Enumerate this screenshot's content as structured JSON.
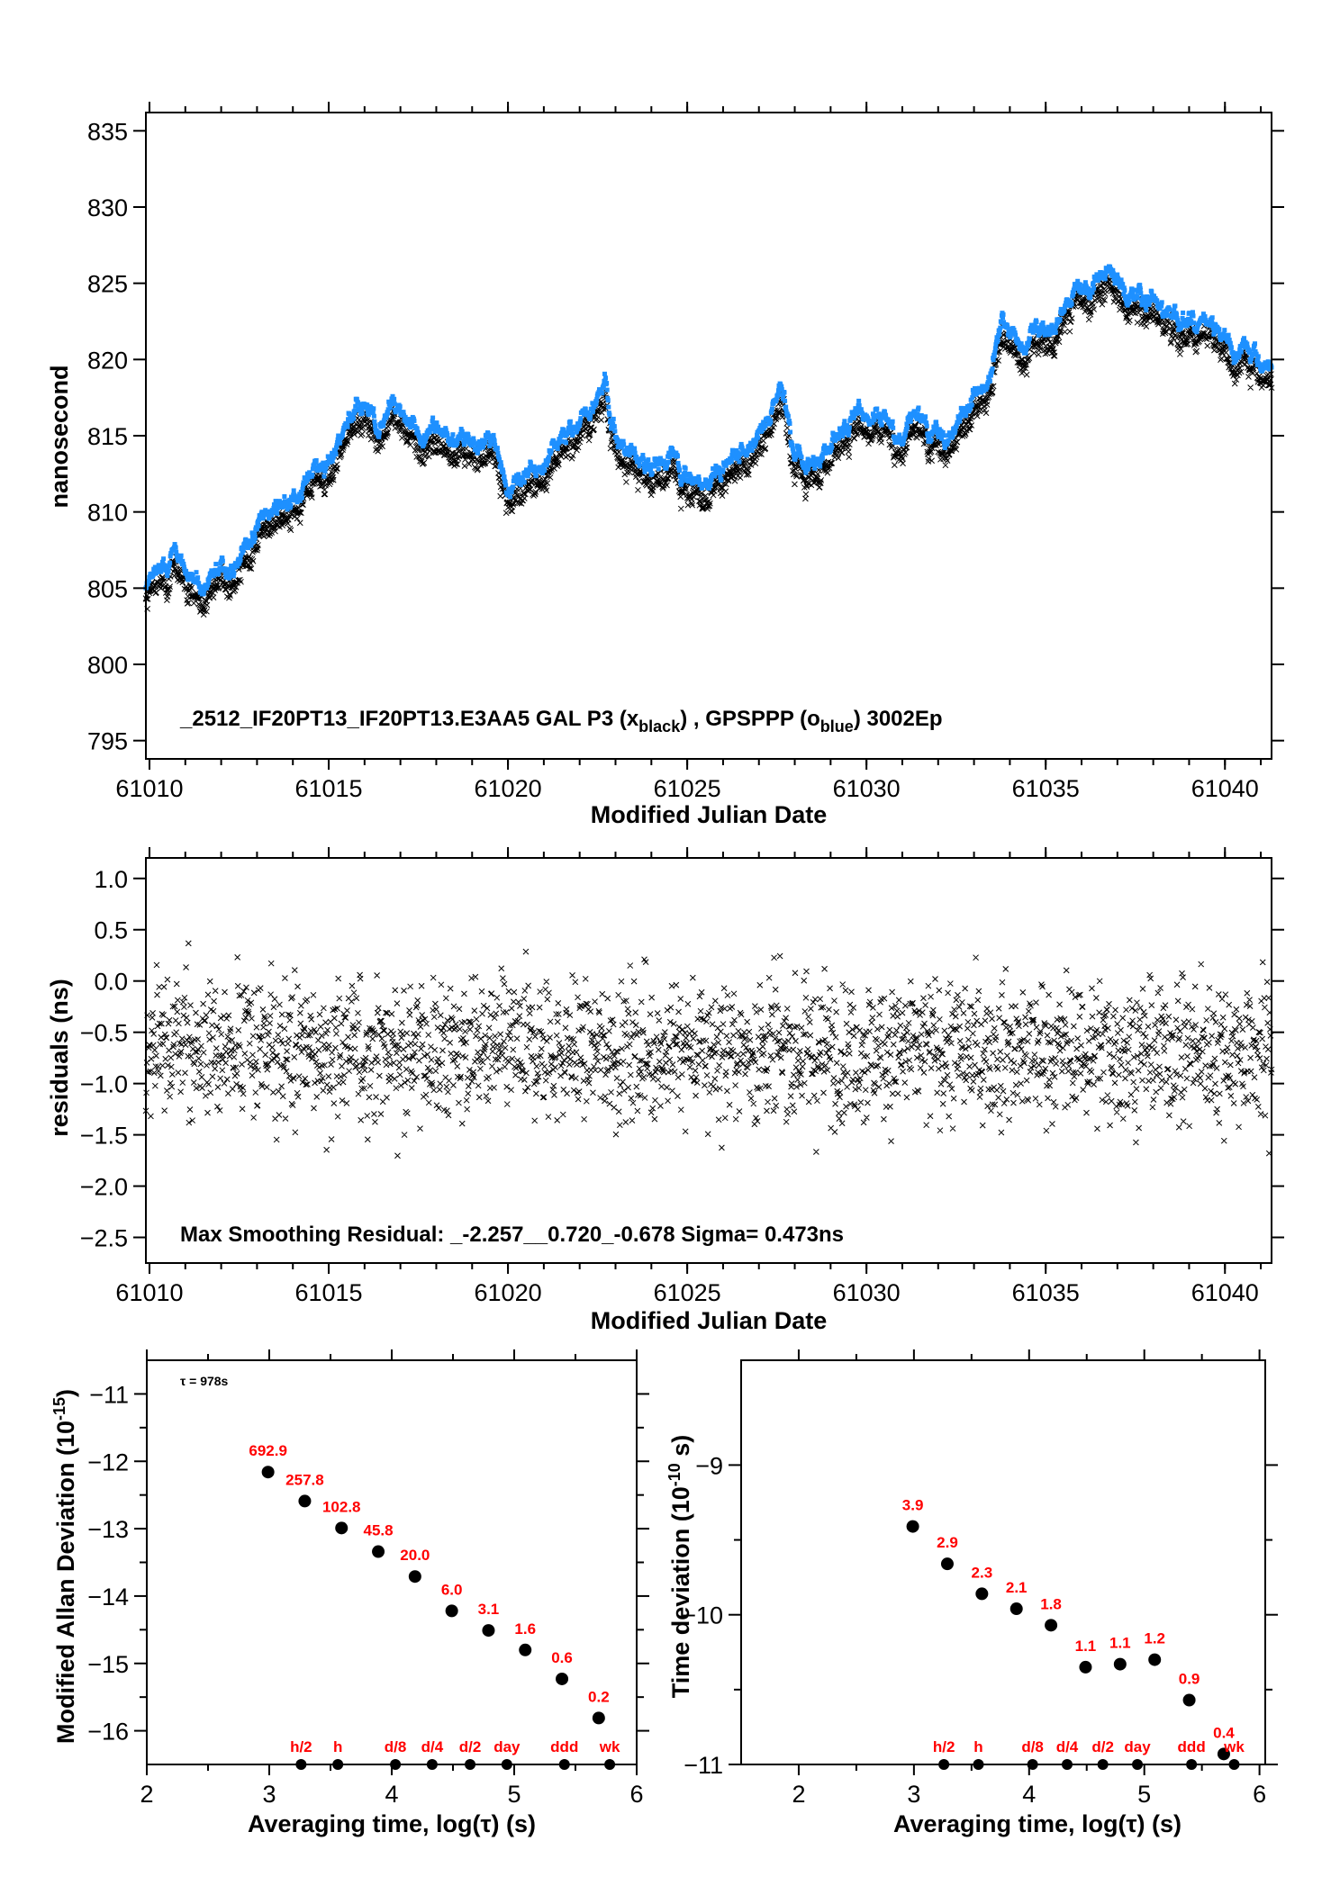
{
  "colors": {
    "black_series": "#000000",
    "blue_series": "#1e90ff",
    "label_red": "#ff0000"
  },
  "chart_data": [
    {
      "id": "time-series",
      "type": "scatter",
      "title": "",
      "annotation": {
        "prefix": "_2512_IF20PT13_IF20PT13.E3AA5     GAL P3 (x",
        "sub1": "black",
        "mid": ") ,  GPSPPP (o",
        "sub2": "blue",
        "suffix": ")  3002Ep"
      },
      "xlabel": "Modified Julian Date",
      "ylabel": "nanosecond",
      "xlim": [
        61009.9,
        61041.3
      ],
      "ylim": [
        793.8,
        836.2
      ],
      "xticks": [
        "61010",
        "61015",
        "61020",
        "61025",
        "61030",
        "61035",
        "61040"
      ],
      "xtick_values": [
        61010,
        61015,
        61020,
        61025,
        61030,
        61035,
        61040
      ],
      "yticks": [
        "795",
        "800",
        "805",
        "810",
        "815",
        "820",
        "825",
        "830",
        "835"
      ],
      "ytick_values": [
        795,
        800,
        805,
        810,
        815,
        820,
        825,
        830,
        835
      ],
      "series": [
        {
          "name": "GAL P3 (x black)",
          "marker": "x",
          "offset_from_blue": -0.9,
          "trend_x": [
            61009.9,
            61010.3,
            61010.7,
            61011.2,
            61011.5,
            61012.0,
            61012.5,
            61013.0,
            61013.5,
            61014.0,
            61014.5,
            61015.0,
            61015.5,
            61016.0,
            61016.5,
            61016.8,
            61017.2,
            61017.7,
            61018.3,
            61019.0,
            61019.6,
            61020.0,
            61020.5,
            61021.0,
            61021.6,
            61022.2,
            61022.7,
            61023.1,
            61023.6,
            61024.0,
            61024.5,
            61025.0,
            61025.5,
            61026.0,
            61026.6,
            61027.2,
            61027.6,
            61028.0,
            61028.6,
            61029.2,
            61029.7,
            61030.2,
            61030.8,
            61031.3,
            61031.8,
            61032.3,
            61032.8,
            61033.3,
            61033.8,
            61034.3,
            61034.8,
            61035.3,
            61035.8,
            61036.3,
            61036.8,
            61037.3,
            61037.8,
            61038.3,
            61038.8,
            61039.3,
            61039.8,
            61040.3,
            61040.8,
            61041.3
          ],
          "trend_y": [
            803.8,
            805.2,
            806.3,
            805.0,
            803.9,
            805.0,
            805.2,
            808.2,
            809.3,
            809.6,
            811.2,
            813.0,
            814.8,
            815.4,
            815.1,
            816.5,
            814.6,
            814.4,
            814.0,
            813.8,
            813.5,
            810.8,
            811.8,
            812.3,
            813.7,
            815.8,
            817.4,
            813.6,
            812.1,
            811.6,
            812.6,
            811.4,
            810.8,
            812.2,
            813.5,
            814.9,
            816.8,
            812.0,
            812.1,
            813.8,
            815.6,
            815.4,
            814.5,
            815.5,
            813.8,
            814.1,
            815.3,
            817.3,
            821.3,
            820.2,
            821.2,
            821.4,
            823.9,
            824.2,
            825.3,
            823.3,
            822.9,
            822.9,
            821.8,
            821.5,
            820.6,
            819.6,
            819.4,
            818.6
          ]
        },
        {
          "name": "GPSPPP (o blue)",
          "marker": "o",
          "note": "plotted slightly above the black series throughout"
        }
      ]
    },
    {
      "id": "residuals",
      "type": "scatter",
      "annotation": "Max Smoothing Residual: _-2.257__0.720_-0.678  Sigma= 0.473ns",
      "xlabel": "Modified Julian Date",
      "ylabel": "residuals (ns)",
      "xlim": [
        61009.9,
        61041.3
      ],
      "ylim": [
        -2.75,
        1.2
      ],
      "xticks": [
        "61010",
        "61015",
        "61020",
        "61025",
        "61030",
        "61035",
        "61040"
      ],
      "xtick_values": [
        61010,
        61015,
        61020,
        61025,
        61030,
        61035,
        61040
      ],
      "yticks": [
        "1.0",
        "0.5",
        "0.0",
        "−0.5",
        "−1.0",
        "−1.5",
        "−2.0",
        "−2.5"
      ],
      "ytick_values": [
        1.0,
        0.5,
        0.0,
        -0.5,
        -1.0,
        -1.5,
        -2.0,
        -2.5
      ],
      "summary": {
        "min": -2.257,
        "max": 0.72,
        "mean": -0.678,
        "sigma": 0.473
      }
    },
    {
      "id": "modified-allan-deviation",
      "type": "scatter",
      "annotation": "τ = 978s",
      "xlabel": "Averaging time, log(τ) (s)",
      "ylabel_main": "Modified Allan Deviation (10",
      "ylabel_sup": "-15",
      "ylabel_end": ")",
      "xlim": [
        2,
        6
      ],
      "ylim": [
        -16.5,
        -10.5
      ],
      "xticks": [
        "2",
        "3",
        "4",
        "5",
        "6"
      ],
      "xtick_values": [
        2,
        3,
        4,
        5,
        6
      ],
      "yticks": [
        "−11",
        "−12",
        "−13",
        "−14",
        "−15",
        "−16"
      ],
      "ytick_values": [
        -11,
        -12,
        -13,
        -14,
        -15,
        -16
      ],
      "x": [
        2.99,
        3.29,
        3.59,
        3.89,
        4.19,
        4.49,
        4.79,
        5.09,
        5.39,
        5.69
      ],
      "y": [
        -12.16,
        -12.59,
        -12.99,
        -13.34,
        -13.71,
        -14.22,
        -14.51,
        -14.8,
        -15.23,
        -15.81
      ],
      "labels": [
        "692.9",
        "257.8",
        "102.8",
        "45.8",
        "20.0",
        "6.0",
        "3.1",
        "1.6",
        "0.6",
        "0.2"
      ],
      "time_markers": {
        "labels": [
          "h/2",
          "h",
          "d/8",
          "d/4",
          "d/2",
          "day",
          "ddd",
          "wk"
        ],
        "x": [
          3.26,
          3.56,
          4.03,
          4.33,
          4.64,
          4.94,
          5.41,
          5.78
        ]
      }
    },
    {
      "id": "time-deviation",
      "type": "scatter",
      "xlabel": "Averaging time, log(τ) (s)",
      "ylabel_main": "Time deviation (10",
      "ylabel_sup": "-10",
      "ylabel_end": " s)",
      "xlim": [
        1.5,
        6.05
      ],
      "ylim": [
        -11,
        -8.3
      ],
      "xticks": [
        "2",
        "3",
        "4",
        "5",
        "6"
      ],
      "xtick_values": [
        2,
        3,
        4,
        5,
        6
      ],
      "yticks": [
        "−9",
        "−10",
        "−11"
      ],
      "ytick_values": [
        -9,
        -10,
        -11
      ],
      "x": [
        2.99,
        3.29,
        3.59,
        3.89,
        4.19,
        4.49,
        4.79,
        5.09,
        5.39,
        5.69
      ],
      "y": [
        -9.41,
        -9.66,
        -9.86,
        -9.96,
        -10.07,
        -10.35,
        -10.33,
        -10.3,
        -10.57,
        -10.93
      ],
      "labels": [
        "3.9",
        "2.9",
        "2.3",
        "2.1",
        "1.8",
        "1.1",
        "1.1",
        "1.2",
        "0.9",
        "0.4"
      ],
      "time_markers": {
        "labels": [
          "h/2",
          "h",
          "d/8",
          "d/4",
          "d/2",
          "day",
          "ddd",
          "wk"
        ],
        "x": [
          3.26,
          3.56,
          4.03,
          4.33,
          4.64,
          4.94,
          5.41,
          5.78
        ]
      }
    }
  ]
}
